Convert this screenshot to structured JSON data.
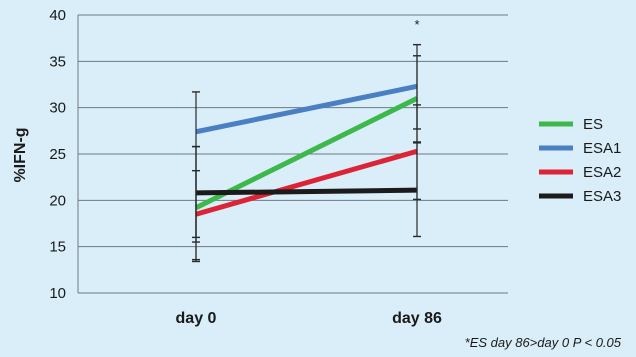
{
  "chart_data": {
    "type": "line",
    "categories": [
      "day 0",
      "day 86"
    ],
    "ylabel": "%IFN-g",
    "xlabel": "",
    "title": "",
    "ylim": [
      10,
      40
    ],
    "yticks": [
      10,
      15,
      20,
      25,
      30,
      35,
      40
    ],
    "grid": true,
    "legend_position": "right",
    "series": [
      {
        "name": "ES",
        "color": "#3db84a",
        "values": [
          19.2,
          31.0
        ],
        "error_high": [
          25.8,
          35.6
        ],
        "error_low": [
          13.6,
          26.2
        ]
      },
      {
        "name": "ESA1",
        "color": "#4a7fc4",
        "values": [
          27.4,
          32.3
        ],
        "error_high": [
          31.7,
          36.8
        ],
        "error_low": [
          15.5,
          27.7
        ]
      },
      {
        "name": "ESA2",
        "color": "#dc2436",
        "values": [
          18.5,
          25.3
        ],
        "error_high": [
          23.2,
          30.3
        ],
        "error_low": [
          13.4,
          16.1
        ]
      },
      {
        "name": "ESA3",
        "color": "#1b1b1b",
        "values": [
          20.8,
          21.1
        ],
        "error_high": [
          25.8,
          26.3
        ],
        "error_low": [
          16.0,
          20.1
        ]
      }
    ],
    "annotations": [
      {
        "text": "*",
        "category": "day 86"
      }
    ],
    "footnote": "*ES day 86>day 0   P < 0.05"
  }
}
